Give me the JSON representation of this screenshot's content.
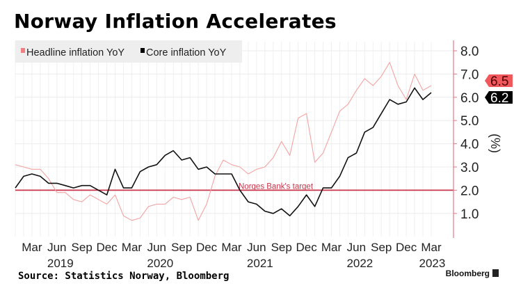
{
  "chart_data": {
    "type": "line",
    "title": "Norway Inflation Accelerates",
    "ylabel": "(%)",
    "ylim": [
      0,
      8.3
    ],
    "yticks": [
      "1.0",
      "2.0",
      "3.0",
      "4.0",
      "5.0",
      "6.0",
      "7.0",
      "8.0"
    ],
    "x_start": "2019-01",
    "x_end": "2023-03",
    "xtick_labels": [
      {
        "month": "2019-03",
        "label": "Mar"
      },
      {
        "month": "2019-06",
        "label": "Jun"
      },
      {
        "month": "2019-09",
        "label": "Sep"
      },
      {
        "month": "2019-12",
        "label": "Dec"
      },
      {
        "month": "2020-03",
        "label": "Mar"
      },
      {
        "month": "2020-06",
        "label": "Jun"
      },
      {
        "month": "2020-09",
        "label": "Sep"
      },
      {
        "month": "2020-12",
        "label": "Dec"
      },
      {
        "month": "2021-03",
        "label": "Mar"
      },
      {
        "month": "2021-06",
        "label": "Jun"
      },
      {
        "month": "2021-09",
        "label": "Sep"
      },
      {
        "month": "2021-12",
        "label": "Dec"
      },
      {
        "month": "2022-03",
        "label": "Mar"
      },
      {
        "month": "2022-06",
        "label": "Jun"
      },
      {
        "month": "2022-09",
        "label": "Sep"
      },
      {
        "month": "2022-12",
        "label": "Dec"
      },
      {
        "month": "2023-03",
        "label": "Mar"
      }
    ],
    "year_labels": [
      "2019",
      "2020",
      "2021",
      "2022",
      "2023"
    ],
    "grid": true,
    "legend_placement": "top-left",
    "series": [
      {
        "name": "Headline inflation YoY",
        "color": "#f4a3a3",
        "last_label": "6.5",
        "label_color": "#f0585c",
        "values": [
          3.1,
          3.0,
          2.9,
          2.9,
          2.5,
          1.9,
          1.9,
          1.6,
          1.5,
          1.8,
          1.6,
          1.4,
          1.8,
          0.9,
          0.7,
          0.8,
          1.3,
          1.4,
          1.4,
          1.7,
          1.6,
          1.7,
          0.7,
          1.4,
          2.6,
          3.3,
          3.1,
          3.0,
          2.7,
          2.9,
          3.0,
          3.4,
          4.1,
          3.5,
          5.1,
          5.3,
          3.2,
          3.6,
          4.5,
          5.4,
          5.7,
          6.3,
          6.8,
          6.5,
          6.9,
          7.5,
          6.5,
          5.9,
          7.0,
          6.3,
          6.5
        ]
      },
      {
        "name": "Core inflation YoY",
        "color": "#111111",
        "last_label": "6.2",
        "label_color": "#000000",
        "values": [
          2.1,
          2.6,
          2.7,
          2.6,
          2.3,
          2.3,
          2.2,
          2.1,
          2.2,
          2.2,
          2.0,
          1.8,
          2.9,
          2.1,
          2.1,
          2.8,
          3.0,
          3.1,
          3.5,
          3.7,
          3.3,
          3.4,
          2.9,
          3.0,
          2.7,
          2.7,
          2.7,
          2.0,
          1.5,
          1.4,
          1.1,
          1.0,
          1.2,
          0.9,
          1.3,
          1.8,
          1.3,
          2.1,
          2.1,
          2.6,
          3.4,
          3.6,
          4.5,
          4.7,
          5.3,
          5.9,
          5.7,
          5.8,
          6.4,
          5.9,
          6.2
        ]
      }
    ],
    "annotations": [
      {
        "text": "Norges Bank's target",
        "y": 2.0,
        "color": "#c8344a"
      }
    ]
  },
  "footer": {
    "source": "Source: Statistics Norway, Bloomberg",
    "brand": "Bloomberg"
  }
}
